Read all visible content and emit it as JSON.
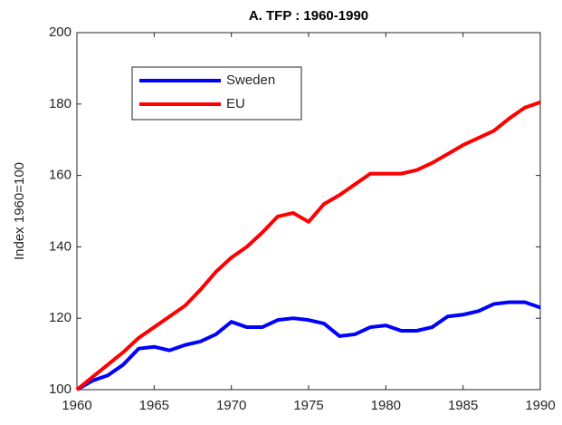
{
  "chart_data": {
    "type": "line",
    "title": "A. TFP : 1960-1990",
    "ylabel": "Index 1960=100",
    "x": [
      1960,
      1961,
      1962,
      1963,
      1964,
      1965,
      1966,
      1967,
      1968,
      1969,
      1970,
      1971,
      1972,
      1973,
      1974,
      1975,
      1976,
      1977,
      1978,
      1979,
      1980,
      1981,
      1982,
      1983,
      1984,
      1985,
      1986,
      1987,
      1988,
      1989,
      1990
    ],
    "series": [
      {
        "name": "Sweden",
        "color": "#0000ff",
        "values": [
          100,
          102.5,
          104,
          107,
          111.5,
          112,
          111,
          112.5,
          113.5,
          115.5,
          119,
          117.5,
          117.5,
          119.5,
          120,
          119.5,
          118.5,
          115,
          115.5,
          117.5,
          118,
          116.5,
          116.5,
          117.5,
          120.5,
          121,
          122,
          124,
          124.5,
          124.5,
          123
        ]
      },
      {
        "name": "EU",
        "color": "#ff0000",
        "values": [
          100,
          103.5,
          107,
          110.5,
          114.5,
          117.5,
          120.5,
          123.5,
          128,
          133,
          137,
          140,
          144,
          148.5,
          149.5,
          147,
          152,
          154.5,
          157.5,
          160.5,
          160.5,
          160.5,
          161.5,
          163.5,
          166,
          168.5,
          170.5,
          172.5,
          176,
          179,
          180.5
        ]
      }
    ],
    "xlim": [
      1960,
      1990
    ],
    "xticks": [
      1960,
      1965,
      1970,
      1975,
      1980,
      1985,
      1990
    ],
    "ylim": [
      100,
      200
    ],
    "yticks": [
      100,
      120,
      140,
      160,
      180,
      200
    ],
    "grid": false,
    "legend": "upper left"
  }
}
